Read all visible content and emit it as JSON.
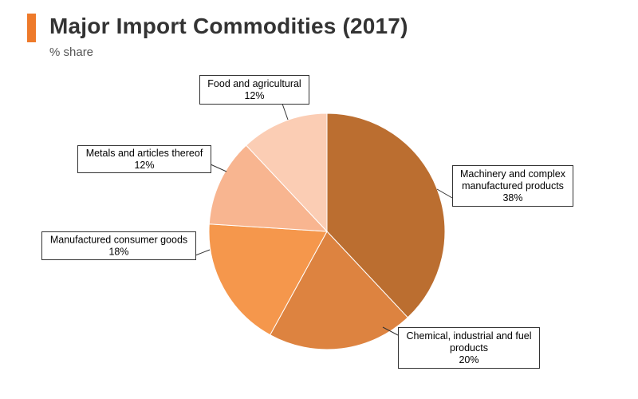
{
  "header": {
    "title": "Major Import Commodities (2017)",
    "subtitle": "% share"
  },
  "chart_data": {
    "type": "pie",
    "title": "Major Import Commodities (2017)",
    "subtitle": "% share",
    "unit": "%",
    "start": "12 o'clock",
    "direction": "clockwise",
    "slices": [
      {
        "label_lines": [
          "Machinery and complex",
          "manufactured products"
        ],
        "value": 38,
        "value_label": "38%",
        "color": "#bb6e30"
      },
      {
        "label_lines": [
          "Chemical, industrial and fuel",
          "products"
        ],
        "value": 20,
        "value_label": "20%",
        "color": "#dd8340"
      },
      {
        "label_lines": [
          "Manufactured consumer goods"
        ],
        "value": 18,
        "value_label": "18%",
        "color": "#f5974c"
      },
      {
        "label_lines": [
          "Metals and articles thereof"
        ],
        "value": 12,
        "value_label": "12%",
        "color": "#f8b590"
      },
      {
        "label_lines": [
          "Food and agricultural"
        ],
        "value": 12,
        "value_label": "12%",
        "color": "#fbcdb4"
      }
    ]
  }
}
